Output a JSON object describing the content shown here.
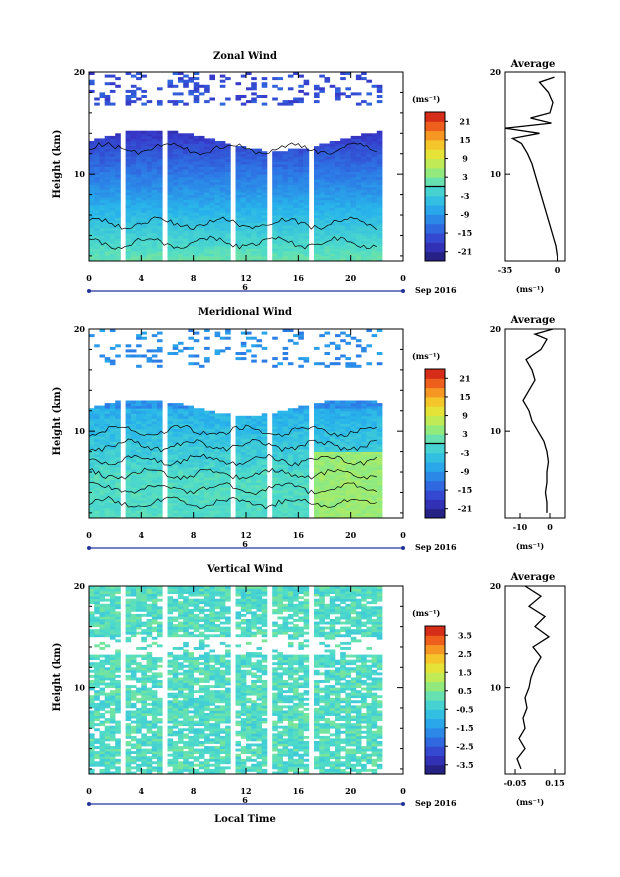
{
  "chart_data": [
    {
      "type": "heatmap",
      "title": "Zonal Wind",
      "xlabel": "",
      "ylabel": "Height (km)",
      "x_ticks": [
        "0",
        "4",
        "8",
        "12",
        "16",
        "20",
        "0"
      ],
      "x_range_hours": [
        0,
        24
      ],
      "y_ticks": [
        "20",
        "10"
      ],
      "y_range_km": [
        1.5,
        20
      ],
      "date_label": "Sep 2016",
      "day_marker": "6",
      "colorbar": {
        "unit": "(ms⁻¹)",
        "range": [
          -24,
          24
        ],
        "ticks": [
          "21",
          "15",
          "9",
          "3",
          "-3",
          "-9",
          "-15",
          "-21"
        ],
        "zero_line": 0
      },
      "data_gaps_hours": [
        [
          2.3,
          2.7
        ],
        [
          5.8,
          6.2
        ],
        [
          10.8,
          11.2
        ],
        [
          13.8,
          14.2
        ],
        [
          16.3,
          16.6
        ],
        [
          17.0,
          17.4
        ]
      ],
      "profile": {
        "title": "Average",
        "xlabel": "(ms⁻¹)",
        "x_ticks": [
          "-35",
          "0"
        ],
        "x_range": [
          -35,
          5
        ],
        "y_ticks": [
          "20",
          "10"
        ],
        "height_km": [
          2,
          3,
          4,
          5,
          6,
          7,
          8,
          9,
          10,
          11,
          12,
          13,
          13.5,
          14,
          14.5,
          15,
          15.5,
          16,
          17,
          18,
          19,
          19.5
        ],
        "value_ms": [
          0,
          -1,
          -3,
          -5,
          -7,
          -9,
          -11,
          -13,
          -15,
          -17,
          -20,
          -24,
          -30,
          -12,
          -35,
          -4,
          -18,
          -5,
          -3,
          -6,
          -12,
          -2
        ]
      }
    },
    {
      "type": "heatmap",
      "title": "Meridional Wind",
      "xlabel": "",
      "ylabel": "Height (km)",
      "x_ticks": [
        "0",
        "4",
        "8",
        "12",
        "16",
        "20",
        "0"
      ],
      "x_range_hours": [
        0,
        24
      ],
      "y_ticks": [
        "20",
        "10"
      ],
      "y_range_km": [
        1.5,
        20
      ],
      "date_label": "Sep 2016",
      "day_marker": "6",
      "colorbar": {
        "unit": "(ms⁻¹)",
        "range": [
          -24,
          24
        ],
        "ticks": [
          "21",
          "15",
          "9",
          "3",
          "-3",
          "-9",
          "-15",
          "-21"
        ],
        "zero_line": 0
      },
      "data_gaps_hours": [
        [
          2.3,
          2.7
        ],
        [
          5.8,
          6.2
        ],
        [
          10.8,
          11.2
        ],
        [
          13.8,
          14.2
        ],
        [
          16.3,
          16.6
        ],
        [
          17.0,
          17.4
        ]
      ],
      "profile": {
        "title": "Average",
        "xlabel": "(ms⁻¹)",
        "x_ticks": [
          "-10",
          "0"
        ],
        "x_range": [
          -15,
          5
        ],
        "y_ticks": [
          "20",
          "10"
        ],
        "height_km": [
          2,
          3,
          4,
          5,
          6,
          7,
          8,
          9,
          10,
          11,
          12,
          13,
          14,
          15,
          16,
          17,
          18,
          19,
          19.5,
          20
        ],
        "value_ms": [
          -1,
          -1,
          -1.5,
          -1,
          -1,
          -0.5,
          -1,
          -2,
          -4,
          -6,
          -7,
          -9,
          -7,
          -5,
          -6,
          -8,
          -3,
          -1,
          -5,
          1
        ]
      }
    },
    {
      "type": "heatmap",
      "title": "Vertical Wind",
      "xlabel": "Local Time",
      "ylabel": "Height (km)",
      "x_ticks": [
        "0",
        "4",
        "8",
        "12",
        "16",
        "20",
        "0"
      ],
      "x_range_hours": [
        0,
        24
      ],
      "y_ticks": [
        "20",
        "10"
      ],
      "y_range_km": [
        1.5,
        20
      ],
      "date_label": "Sep 2016",
      "day_marker": "6",
      "colorbar": {
        "unit": "(ms⁻¹)",
        "range": [
          -4,
          4
        ],
        "ticks": [
          "3.5",
          "2.5",
          "1.5",
          "0.5",
          "-0.5",
          "-1.5",
          "-2.5",
          "-3.5"
        ]
      },
      "data_gaps_hours": [
        [
          2.3,
          2.7
        ],
        [
          5.8,
          6.2
        ],
        [
          10.8,
          11.2
        ],
        [
          13.8,
          14.2
        ],
        [
          16.3,
          16.6
        ],
        [
          17.0,
          17.4
        ]
      ],
      "profile": {
        "title": "Average",
        "xlabel": "(ms⁻¹)",
        "x_ticks": [
          "-0.05",
          "0.15"
        ],
        "x_range": [
          -0.1,
          0.2
        ],
        "y_ticks": [
          "20",
          "10"
        ],
        "height_km": [
          2,
          3,
          4,
          5,
          6,
          7,
          8,
          9,
          10,
          11,
          12,
          13,
          14,
          15,
          16,
          17,
          18,
          19,
          20
        ],
        "value_ms": [
          -0.02,
          -0.04,
          0.0,
          -0.03,
          0.0,
          -0.01,
          0.01,
          0.0,
          0.02,
          0.03,
          0.05,
          0.08,
          0.04,
          0.12,
          0.05,
          0.1,
          0.02,
          0.08,
          0.0
        ]
      }
    }
  ]
}
